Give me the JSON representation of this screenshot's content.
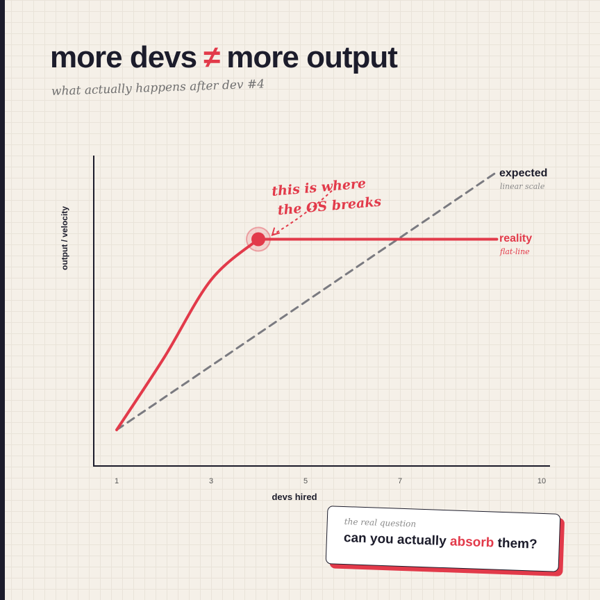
{
  "header": {
    "title_left": "more devs",
    "title_symbol": "≠",
    "title_right": "more output",
    "subtitle": "what actually happens after dev #4"
  },
  "chart_data": {
    "type": "line",
    "xlabel": "devs hired",
    "ylabel": "output / velocity",
    "x_ticks": [
      "1",
      "3",
      "5",
      "7",
      "10"
    ],
    "xlim": [
      0.5,
      12
    ],
    "ylim": [
      0,
      100
    ],
    "series": [
      {
        "name": "expected",
        "note": "linear scale",
        "style": "dashed",
        "color": "#7a7a80",
        "points": [
          [
            1,
            10
          ],
          [
            9.05,
            92.5
          ]
        ]
      },
      {
        "name": "reality",
        "note": "flat-line",
        "style": "solid",
        "color": "#e23a4a",
        "points": [
          [
            1,
            10
          ],
          [
            2,
            33
          ],
          [
            3,
            58
          ],
          [
            4,
            71
          ],
          [
            9.05,
            71
          ]
        ]
      }
    ],
    "annotation": {
      "text_line1": "this is where",
      "text_line2": "the OS breaks",
      "x": 4,
      "y": 71
    }
  },
  "callout": {
    "eyebrow": "the real question",
    "text_before": "can you actually",
    "text_highlight": "absorb",
    "text_after": "them?"
  },
  "colors": {
    "accent": "#e23a4a",
    "ink": "#1c1c2b",
    "background": "#f5f0e8",
    "muted": "#7a7a80"
  }
}
